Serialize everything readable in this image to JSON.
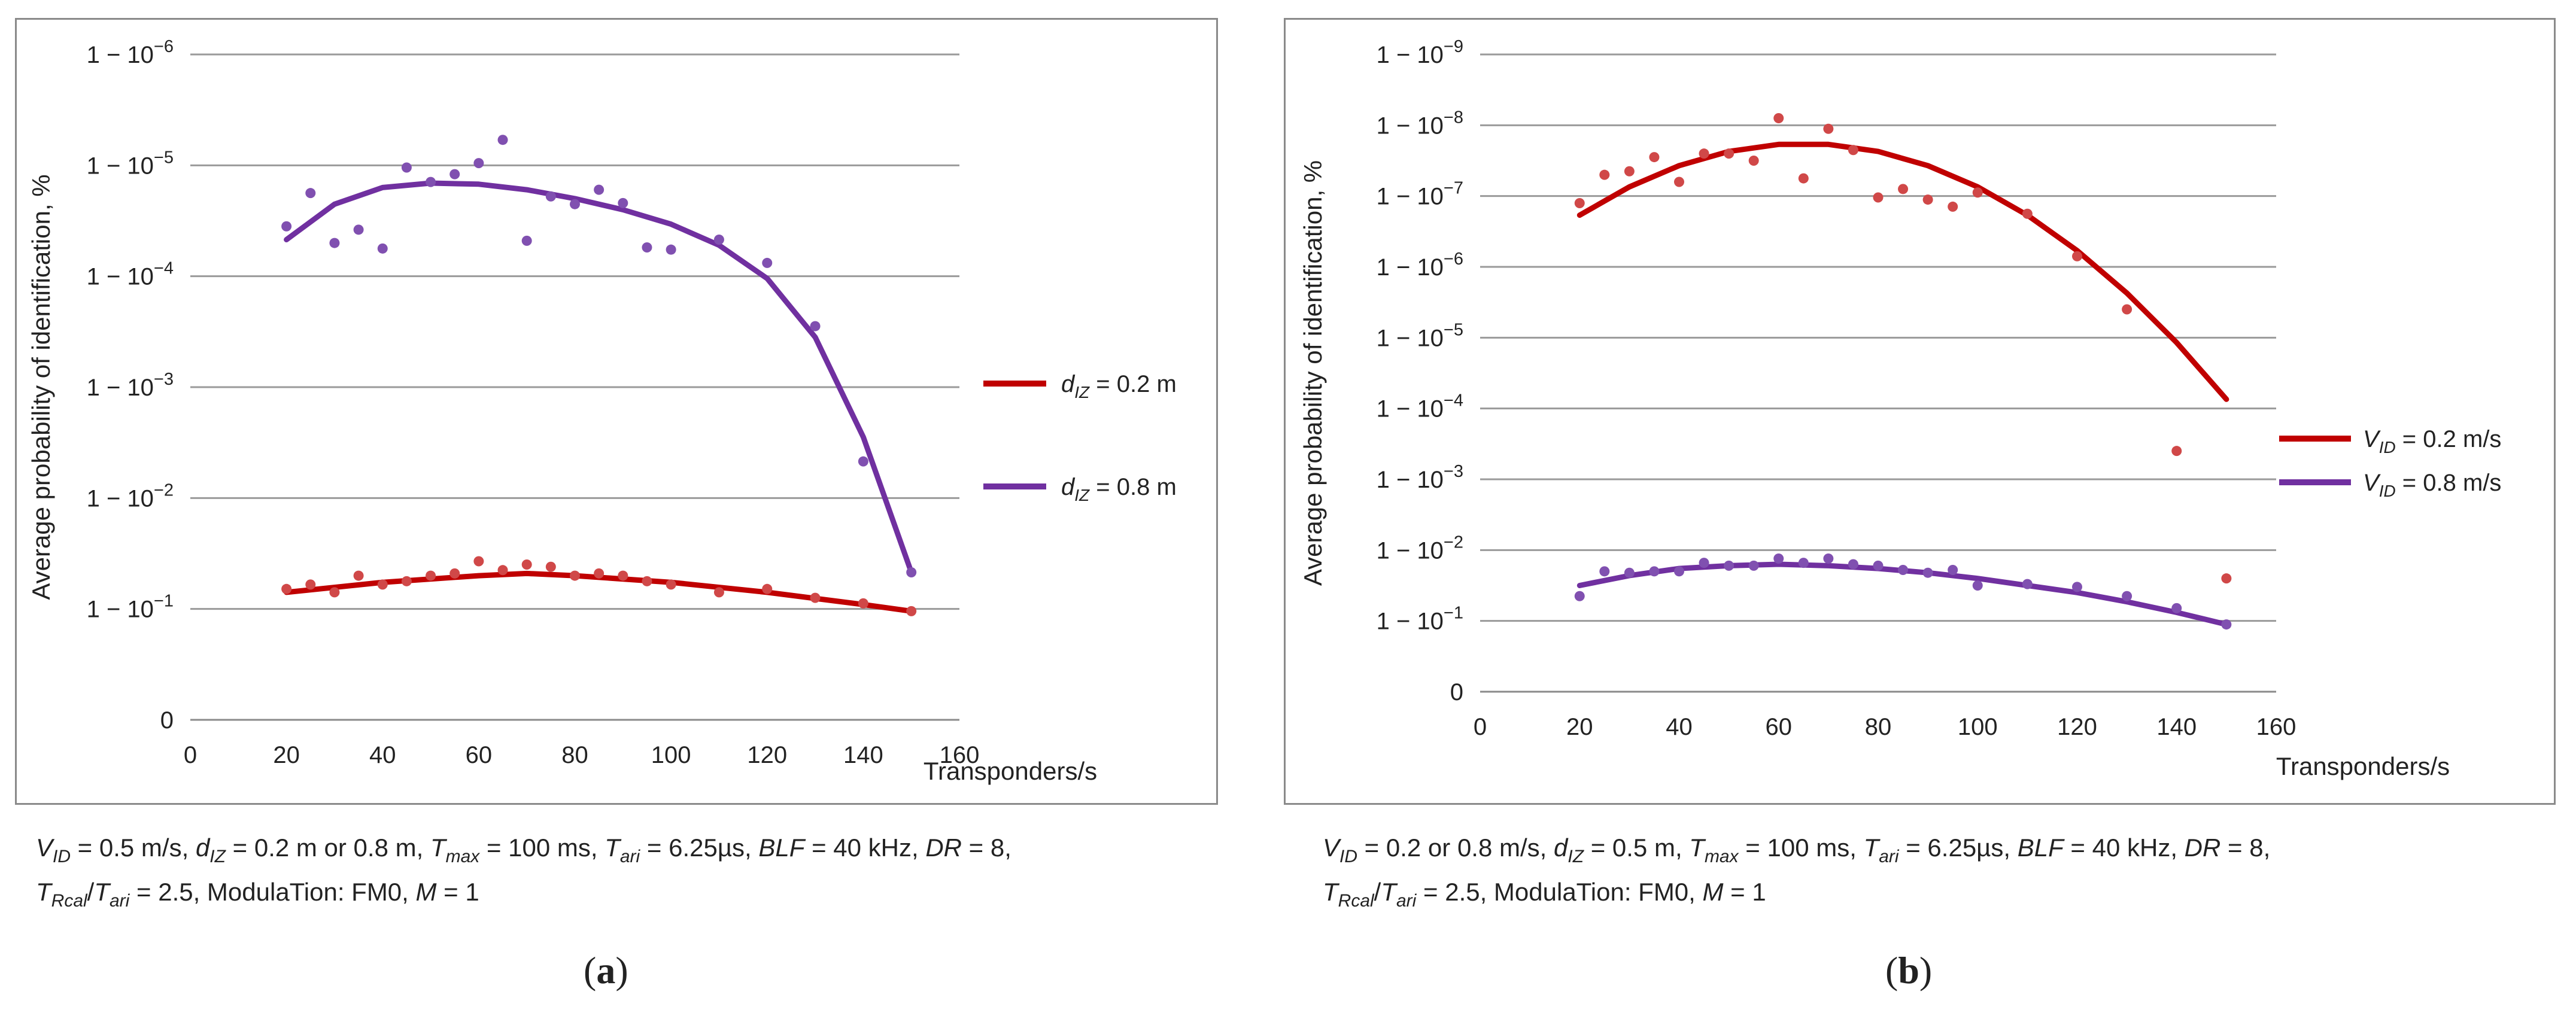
{
  "chart_data": [
    {
      "id": "a",
      "type": "scatter",
      "panel_label": "a",
      "xlabel": "Transponders/s",
      "ylabel": "Average  probability of identification, %",
      "x_ticks": [
        "0",
        "20",
        "40",
        "60",
        "80",
        "100",
        "120",
        "140",
        "160"
      ],
      "xlim": [
        0,
        160
      ],
      "y_ticks": [
        {
          "base": "0",
          "exp": ""
        },
        {
          "base": "1 − 10",
          "exp": "−1"
        },
        {
          "base": "1 − 10",
          "exp": "−2"
        },
        {
          "base": "1 − 10",
          "exp": "−3"
        },
        {
          "base": "1 − 10",
          "exp": "−4"
        },
        {
          "base": "1 − 10",
          "exp": "−5"
        },
        {
          "base": "1 − 10",
          "exp": "−6"
        }
      ],
      "ylim": [
        0,
        6
      ],
      "legend": [
        {
          "name_main": "d",
          "name_sub": "IZ",
          "name_rest": " = 0.2 m",
          "color": "#c00000"
        },
        {
          "name_main": "d",
          "name_sub": "IZ",
          "name_rest": " = 0.8 m",
          "color": "#7030a0"
        }
      ],
      "series": [
        {
          "name": "dIZ = 0.2 m",
          "color": "#c00000",
          "point_color": "#d04848",
          "points": [
            [
              20,
              1.18
            ],
            [
              25,
              1.22
            ],
            [
              30,
              1.15
            ],
            [
              35,
              1.3
            ],
            [
              40,
              1.22
            ],
            [
              45,
              1.25
            ],
            [
              50,
              1.3
            ],
            [
              55,
              1.32
            ],
            [
              60,
              1.43
            ],
            [
              65,
              1.35
            ],
            [
              70,
              1.4
            ],
            [
              75,
              1.38
            ],
            [
              80,
              1.3
            ],
            [
              85,
              1.32
            ],
            [
              90,
              1.3
            ],
            [
              95,
              1.25
            ],
            [
              100,
              1.22
            ],
            [
              110,
              1.15
            ],
            [
              120,
              1.18
            ],
            [
              130,
              1.1
            ],
            [
              140,
              1.05
            ],
            [
              150,
              0.98
            ]
          ],
          "trend": [
            [
              20,
              1.15
            ],
            [
              40,
              1.24
            ],
            [
              60,
              1.3
            ],
            [
              70,
              1.32
            ],
            [
              80,
              1.3
            ],
            [
              100,
              1.24
            ],
            [
              120,
              1.15
            ],
            [
              140,
              1.04
            ],
            [
              150,
              0.98
            ]
          ]
        },
        {
          "name": "dIZ = 0.8 m",
          "color": "#7030a0",
          "point_color": "#8050b0",
          "points": [
            [
              20,
              4.45
            ],
            [
              25,
              4.75
            ],
            [
              30,
              4.3
            ],
            [
              35,
              4.42
            ],
            [
              40,
              4.25
            ],
            [
              45,
              4.98
            ],
            [
              50,
              4.85
            ],
            [
              55,
              4.92
            ],
            [
              60,
              5.02
            ],
            [
              65,
              5.23
            ],
            [
              70,
              4.32
            ],
            [
              75,
              4.72
            ],
            [
              80,
              4.65
            ],
            [
              85,
              4.78
            ],
            [
              90,
              4.66
            ],
            [
              95,
              4.26
            ],
            [
              100,
              4.24
            ],
            [
              110,
              4.33
            ],
            [
              120,
              4.12
            ],
            [
              130,
              3.55
            ],
            [
              140,
              2.33
            ],
            [
              150,
              1.33
            ]
          ],
          "trend": [
            [
              20,
              4.33
            ],
            [
              30,
              4.65
            ],
            [
              40,
              4.8
            ],
            [
              50,
              4.84
            ],
            [
              60,
              4.83
            ],
            [
              70,
              4.78
            ],
            [
              80,
              4.7
            ],
            [
              90,
              4.6
            ],
            [
              100,
              4.47
            ],
            [
              110,
              4.28
            ],
            [
              120,
              3.98
            ],
            [
              130,
              3.45
            ],
            [
              140,
              2.55
            ],
            [
              150,
              1.33
            ]
          ]
        }
      ]
    },
    {
      "id": "b",
      "type": "scatter",
      "panel_label": "b",
      "xlabel": "Transponders/s",
      "ylabel": "Average probability of identification, %",
      "x_ticks": [
        "0",
        "20",
        "40",
        "60",
        "80",
        "100",
        "120",
        "140",
        "160"
      ],
      "xlim": [
        0,
        160
      ],
      "y_ticks": [
        {
          "base": "0",
          "exp": ""
        },
        {
          "base": "1 − 10",
          "exp": "−1"
        },
        {
          "base": "1 − 10",
          "exp": "−2"
        },
        {
          "base": "1 − 10",
          "exp": "−3"
        },
        {
          "base": "1 − 10",
          "exp": "−4"
        },
        {
          "base": "1 − 10",
          "exp": "−5"
        },
        {
          "base": "1 − 10",
          "exp": "−6"
        },
        {
          "base": "1 − 10",
          "exp": "−7"
        },
        {
          "base": "1 − 10",
          "exp": "−8"
        },
        {
          "base": "1 − 10",
          "exp": "−9"
        }
      ],
      "ylim": [
        0,
        9
      ],
      "legend": [
        {
          "name_main": "V",
          "name_sub": "ID",
          "name_rest": " = 0.2 m/s",
          "color": "#c00000"
        },
        {
          "name_main": "V",
          "name_sub": "ID",
          "name_rest": " = 0.8 m/s",
          "color": "#7030a0"
        }
      ],
      "series": [
        {
          "name": "VID = 0.2 m/s",
          "color": "#c00000",
          "point_color": "#d04848",
          "points": [
            [
              20,
              6.9
            ],
            [
              25,
              7.3
            ],
            [
              30,
              7.35
            ],
            [
              35,
              7.55
            ],
            [
              40,
              7.2
            ],
            [
              45,
              7.6
            ],
            [
              50,
              7.6
            ],
            [
              55,
              7.5
            ],
            [
              60,
              8.1
            ],
            [
              65,
              7.25
            ],
            [
              70,
              7.95
            ],
            [
              75,
              7.65
            ],
            [
              80,
              6.98
            ],
            [
              85,
              7.1
            ],
            [
              90,
              6.95
            ],
            [
              95,
              6.85
            ],
            [
              100,
              7.05
            ],
            [
              110,
              6.75
            ],
            [
              120,
              6.15
            ],
            [
              130,
              5.4
            ],
            [
              140,
              3.4
            ],
            [
              150,
              1.6
            ]
          ],
          "trend": [
            [
              20,
              6.73
            ],
            [
              30,
              7.13
            ],
            [
              40,
              7.43
            ],
            [
              50,
              7.63
            ],
            [
              60,
              7.73
            ],
            [
              70,
              7.73
            ],
            [
              80,
              7.63
            ],
            [
              90,
              7.43
            ],
            [
              100,
              7.13
            ],
            [
              110,
              6.73
            ],
            [
              120,
              6.23
            ],
            [
              130,
              5.63
            ],
            [
              140,
              4.93
            ],
            [
              150,
              4.13
            ]
          ]
        },
        {
          "name": "VID = 0.8 m/s",
          "color": "#7030a0",
          "point_color": "#8050b0",
          "points": [
            [
              20,
              1.35
            ],
            [
              25,
              1.7
            ],
            [
              30,
              1.68
            ],
            [
              35,
              1.7
            ],
            [
              40,
              1.7
            ],
            [
              45,
              1.82
            ],
            [
              50,
              1.78
            ],
            [
              55,
              1.78
            ],
            [
              60,
              1.88
            ],
            [
              65,
              1.82
            ],
            [
              70,
              1.88
            ],
            [
              75,
              1.8
            ],
            [
              80,
              1.78
            ],
            [
              85,
              1.72
            ],
            [
              90,
              1.68
            ],
            [
              95,
              1.72
            ],
            [
              100,
              1.5
            ],
            [
              110,
              1.52
            ],
            [
              120,
              1.48
            ],
            [
              130,
              1.35
            ],
            [
              140,
              1.18
            ],
            [
              150,
              0.95
            ]
          ],
          "trend": [
            [
              20,
              1.5
            ],
            [
              30,
              1.64
            ],
            [
              40,
              1.74
            ],
            [
              50,
              1.78
            ],
            [
              60,
              1.8
            ],
            [
              70,
              1.78
            ],
            [
              80,
              1.74
            ],
            [
              90,
              1.68
            ],
            [
              100,
              1.6
            ],
            [
              110,
              1.5
            ],
            [
              120,
              1.4
            ],
            [
              130,
              1.27
            ],
            [
              140,
              1.12
            ],
            [
              150,
              0.95
            ]
          ]
        }
      ]
    }
  ],
  "captions": {
    "a": {
      "parts1": [
        {
          "t": "V",
          "s": "ID",
          "r": " = 0.5 m/s, "
        },
        {
          "t": "d",
          "s": "IZ",
          "r": " = 0.2 m or 0.8 m, "
        },
        {
          "t": "T",
          "s": "max",
          "r": " =  100 ms, "
        },
        {
          "t": "T",
          "s": "ari",
          "r": " = 6.25µs, "
        },
        {
          "t": "BLF",
          "s": "",
          "r": " = 40 kHz, "
        },
        {
          "t": "DR",
          "s": "",
          "r": " = 8,"
        }
      ],
      "parts2": [
        {
          "t": "T",
          "s": "Rcal",
          "r": "/"
        },
        {
          "t": "T",
          "s": "ari",
          "r": " = 2.5, ModulaTion: FM0, "
        },
        {
          "t": "M",
          "s": "",
          "r": " = 1"
        }
      ]
    },
    "b": {
      "parts1": [
        {
          "t": "V",
          "s": "ID",
          "r": " = 0.2 or 0.8 m/s, "
        },
        {
          "t": "d",
          "s": "IZ",
          "r": " = 0.5 m, "
        },
        {
          "t": "T",
          "s": "max",
          "r": " = 100 ms, "
        },
        {
          "t": "T",
          "s": "ari",
          "r": " = 6.25µs, "
        },
        {
          "t": "BLF",
          "s": "",
          "r": " = 40 kHz, "
        },
        {
          "t": "DR",
          "s": "",
          "r": " = 8,"
        }
      ],
      "parts2": [
        {
          "t": "T",
          "s": "Rcal",
          "r": "/"
        },
        {
          "t": "T",
          "s": "ari",
          "r": " = 2.5, ModulaTion: FM0, "
        },
        {
          "t": "M",
          "s": "",
          "r": " = 1"
        }
      ]
    }
  }
}
